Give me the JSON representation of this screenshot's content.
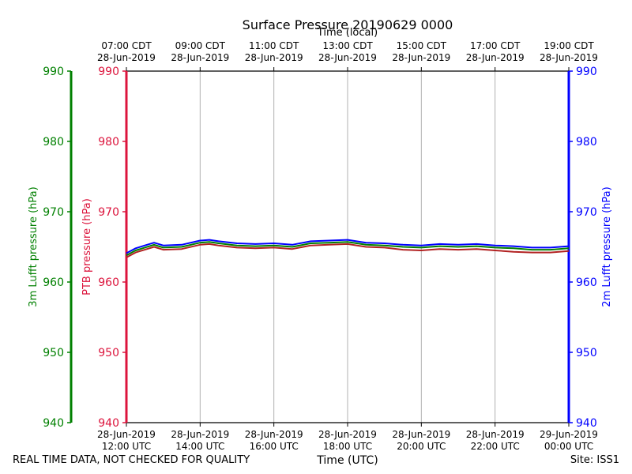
{
  "chart_data": {
    "type": "line",
    "title": "Surface Pressure 20190629 0000",
    "xlabel": "Time (UTC)",
    "xlabel_top": "Time (local)",
    "x_ticks_bottom": [
      {
        "line1": "28-Jun-2019",
        "line2": "12:00 UTC"
      },
      {
        "line1": "28-Jun-2019",
        "line2": "14:00 UTC"
      },
      {
        "line1": "28-Jun-2019",
        "line2": "16:00 UTC"
      },
      {
        "line1": "28-Jun-2019",
        "line2": "18:00 UTC"
      },
      {
        "line1": "28-Jun-2019",
        "line2": "20:00 UTC"
      },
      {
        "line1": "28-Jun-2019",
        "line2": "22:00 UTC"
      },
      {
        "line1": "29-Jun-2019",
        "line2": "00:00 UTC"
      }
    ],
    "x_ticks_top": [
      {
        "line1": "07:00 CDT",
        "line2": "28-Jun-2019"
      },
      {
        "line1": "09:00 CDT",
        "line2": "28-Jun-2019"
      },
      {
        "line1": "11:00 CDT",
        "line2": "28-Jun-2019"
      },
      {
        "line1": "13:00 CDT",
        "line2": "28-Jun-2019"
      },
      {
        "line1": "15:00 CDT",
        "line2": "28-Jun-2019"
      },
      {
        "line1": "17:00 CDT",
        "line2": "28-Jun-2019"
      },
      {
        "line1": "19:00 CDT",
        "line2": "28-Jun-2019"
      }
    ],
    "x_hours_utc_range": [
      12,
      24
    ],
    "ylim": [
      940,
      990
    ],
    "y_ticks": [
      940,
      950,
      960,
      970,
      980,
      990
    ],
    "axes": [
      {
        "label": "3m Lufft pressure (hPa)",
        "color": "#008000",
        "side": "left-outer"
      },
      {
        "label": "PTB pressure (hPa)",
        "color": "#dc143c",
        "side": "left"
      },
      {
        "label": "2m Lufft pressure (hPa)",
        "color": "#0000ff",
        "side": "right"
      }
    ],
    "grid": "vertical",
    "series": [
      {
        "color": "#0000ff",
        "x_hours_utc": [
          12.0,
          12.25,
          12.5,
          12.75,
          13.0,
          13.5,
          14.0,
          14.25,
          14.5,
          15.0,
          15.5,
          16.0,
          16.5,
          17.0,
          17.5,
          18.0,
          18.5,
          19.0,
          19.5,
          20.0,
          20.5,
          21.0,
          21.5,
          22.0,
          22.5,
          23.0,
          23.5,
          24.0
        ],
        "values": [
          964.1,
          964.8,
          965.2,
          965.6,
          965.2,
          965.3,
          965.9,
          966.0,
          965.8,
          965.5,
          965.4,
          965.5,
          965.3,
          965.8,
          965.9,
          966.0,
          965.6,
          965.5,
          965.3,
          965.2,
          965.4,
          965.3,
          965.4,
          965.2,
          965.1,
          964.9,
          964.9,
          965.1
        ]
      },
      {
        "color": "#008000",
        "x_hours_utc": [
          12.0,
          12.25,
          12.5,
          12.75,
          13.0,
          13.5,
          14.0,
          14.25,
          14.5,
          15.0,
          15.5,
          16.0,
          16.5,
          17.0,
          17.5,
          18.0,
          18.5,
          19.0,
          19.5,
          20.0,
          20.5,
          21.0,
          21.5,
          22.0,
          22.5,
          23.0,
          23.5,
          24.0
        ],
        "values": [
          963.8,
          964.5,
          964.9,
          965.3,
          964.9,
          965.0,
          965.6,
          965.7,
          965.5,
          965.2,
          965.1,
          965.2,
          965.0,
          965.5,
          965.6,
          965.7,
          965.3,
          965.2,
          965.0,
          964.9,
          965.1,
          965.0,
          965.1,
          964.9,
          964.8,
          964.6,
          964.6,
          964.8
        ]
      },
      {
        "color": "#b22222",
        "x_hours_utc": [
          12.0,
          12.25,
          12.5,
          12.75,
          13.0,
          13.5,
          14.0,
          14.25,
          14.5,
          15.0,
          15.5,
          16.0,
          16.5,
          17.0,
          17.5,
          18.0,
          18.5,
          19.0,
          19.5,
          20.0,
          20.5,
          21.0,
          21.5,
          22.0,
          22.5,
          23.0,
          23.5,
          24.0
        ],
        "values": [
          963.5,
          964.2,
          964.6,
          965.0,
          964.6,
          964.7,
          965.3,
          965.4,
          965.2,
          964.9,
          964.8,
          964.9,
          964.7,
          965.2,
          965.3,
          965.4,
          965.0,
          964.9,
          964.6,
          964.5,
          964.7,
          964.6,
          964.7,
          964.5,
          964.3,
          964.2,
          964.2,
          964.4
        ]
      }
    ]
  },
  "footer": {
    "left": "REAL TIME DATA, NOT CHECKED FOR QUALITY",
    "right": "Site: ISS1"
  }
}
